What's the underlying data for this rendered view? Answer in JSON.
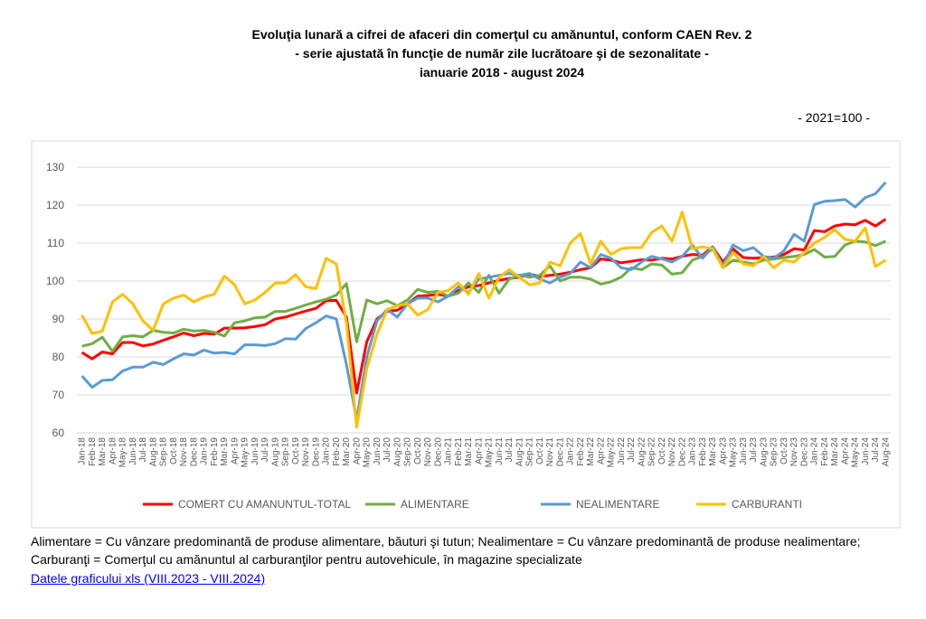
{
  "chart_data": {
    "type": "line",
    "title": [
      "Evoluţia lunară a cifrei de afaceri din comerţul cu amănuntul, conform CAEN Rev. 2",
      "- serie ajustată în funcţie de număr zile lucrătoare şi de sezonalitate -",
      "ianuarie 2018 - august 2024"
    ],
    "subtitle": "- 2021=100 -",
    "categories": [
      "Jan-18",
      "Feb-18",
      "Mar-18",
      "Apr-18",
      "May-18",
      "Jun-18",
      "Jul-18",
      "Aug-18",
      "Sep-18",
      "Oct-18",
      "Nov-18",
      "Dec-18",
      "Jan-19",
      "Feb-19",
      "Mar-19",
      "Apr-19",
      "May-19",
      "Jun-19",
      "Jul-19",
      "Aug-19",
      "Sep-19",
      "Oct-19",
      "Nov-19",
      "Dec-19",
      "Jan-20",
      "Feb-20",
      "Mar-20",
      "Apr-20",
      "May-20",
      "Jun-20",
      "Jul-20",
      "Aug-20",
      "Sep-20",
      "Oct-20",
      "Nov-20",
      "Dec-20",
      "Jan-21",
      "Feb-21",
      "Mar-21",
      "Apr-21",
      "May-21",
      "Jun-21",
      "Jul-21",
      "Aug-21",
      "Sep-21",
      "Oct-21",
      "Nov-21",
      "Dec-21",
      "Jan-22",
      "Feb-22",
      "Mar-22",
      "Apr-22",
      "May-22",
      "Jun-22",
      "Jul-22",
      "Aug-22",
      "Sep-22",
      "Oct-22",
      "Nov-22",
      "Dec-22",
      "Jan-23",
      "Feb-23",
      "Mar-23",
      "Apr-23",
      "May-23",
      "Jun-23",
      "Jul-23",
      "Aug-23",
      "Sep-23",
      "Oct-23",
      "Nov-23",
      "Dec-23",
      "Jan-24",
      "Feb-24",
      "Mar-24",
      "Apr-24",
      "May-24",
      "Jun-24",
      "Jul-24",
      "Aug-24"
    ],
    "series": [
      {
        "name": "COMERT CU AMANUNTUL-TOTAL",
        "color": "#ff0000",
        "values": [
          81.2,
          79.5,
          81.3,
          80.8,
          83.8,
          83.8,
          82.9,
          83.4,
          84.4,
          85.3,
          86.3,
          85.6,
          86.2,
          86.0,
          87.6,
          87.6,
          87.7,
          88.0,
          88.5,
          90.0,
          90.5,
          91.3,
          92.1,
          92.8,
          94.8,
          94.9,
          90.5,
          70.5,
          84.0,
          90.0,
          92.0,
          92.3,
          94.0,
          96.0,
          96.2,
          96.5,
          96.0,
          97.5,
          98.5,
          98.8,
          99.5,
          100.2,
          100.7,
          101.0,
          101.8,
          101.2,
          101.5,
          101.8,
          102.3,
          103.0,
          103.5,
          105.8,
          105.5,
          104.8,
          105.2,
          105.6,
          105.5,
          106.0,
          105.8,
          106.5,
          107.0,
          106.8,
          109.0,
          105.0,
          108.5,
          106.2,
          106.0,
          106.2,
          106.3,
          107.0,
          108.5,
          108.2,
          113.3,
          113.0,
          114.5,
          115.0,
          114.8,
          116.0,
          114.5,
          116.3
        ]
      },
      {
        "name": "ALIMENTARE",
        "color": "#70ad47",
        "values": [
          82.8,
          83.5,
          85.2,
          81.5,
          85.3,
          85.6,
          85.3,
          87.0,
          86.5,
          86.3,
          87.3,
          86.8,
          87.0,
          86.5,
          85.5,
          89.0,
          89.5,
          90.3,
          90.5,
          92.0,
          92.0,
          92.8,
          93.7,
          94.5,
          95.2,
          96.3,
          99.3,
          84.0,
          95.0,
          94.0,
          94.8,
          93.5,
          95.0,
          97.8,
          97.0,
          97.3,
          96.0,
          96.8,
          99.5,
          97.0,
          101.5,
          96.8,
          100.5,
          101.5,
          101.0,
          101.5,
          104.0,
          100.0,
          101.0,
          101.0,
          100.5,
          99.2,
          99.8,
          101.0,
          103.5,
          103.0,
          104.5,
          104.2,
          101.8,
          102.2,
          105.5,
          106.5,
          108.5,
          103.5,
          105.5,
          105.0,
          104.5,
          105.5,
          105.8,
          106.2,
          106.5,
          107.0,
          108.3,
          106.3,
          106.5,
          109.5,
          110.5,
          110.3,
          109.3,
          110.5
        ]
      },
      {
        "name": "NEALIMENTARE",
        "color": "#5b9bd5",
        "values": [
          75.0,
          72.0,
          73.8,
          74.0,
          76.3,
          77.3,
          77.3,
          78.6,
          78.0,
          79.5,
          80.8,
          80.5,
          81.8,
          81.0,
          81.2,
          80.8,
          83.2,
          83.2,
          83.0,
          83.5,
          84.8,
          84.7,
          87.5,
          89.0,
          90.8,
          90.0,
          78.0,
          63.5,
          80.0,
          89.5,
          92.5,
          90.5,
          94.0,
          95.5,
          95.5,
          94.5,
          96.0,
          98.5,
          97.0,
          100.5,
          101.0,
          101.5,
          102.0,
          101.5,
          102.0,
          100.5,
          99.5,
          101.0,
          102.0,
          105.0,
          103.5,
          107.0,
          106.0,
          103.5,
          103.0,
          105.0,
          106.5,
          105.8,
          105.0,
          106.5,
          109.5,
          106.0,
          109.0,
          104.0,
          109.5,
          108.0,
          108.8,
          106.5,
          106.0,
          108.0,
          112.3,
          110.5,
          120.2,
          121.0,
          121.2,
          121.5,
          119.5,
          122.0,
          123.0,
          126.0
        ]
      },
      {
        "name": "CARBURANTI",
        "color": "#ffc000",
        "values": [
          91.0,
          86.2,
          86.8,
          94.5,
          96.5,
          94.0,
          89.5,
          87.0,
          94.0,
          95.5,
          96.3,
          94.5,
          95.8,
          96.5,
          101.3,
          99.0,
          94.0,
          95.0,
          97.0,
          99.5,
          99.5,
          101.7,
          98.5,
          98.0,
          106.0,
          104.5,
          89.0,
          61.5,
          77.0,
          86.0,
          92.5,
          93.5,
          94.0,
          91.0,
          92.5,
          97.0,
          97.5,
          99.5,
          96.5,
          102.0,
          95.5,
          101.0,
          103.0,
          101.0,
          99.0,
          99.5,
          105.0,
          104.0,
          110.0,
          112.5,
          104.5,
          110.5,
          107.0,
          108.5,
          108.8,
          108.8,
          112.8,
          114.5,
          110.5,
          118.2,
          108.5,
          109.0,
          108.5,
          103.5,
          107.5,
          104.5,
          104.0,
          106.5,
          103.5,
          105.5,
          105.0,
          107.5,
          110.0,
          111.5,
          113.5,
          111.0,
          110.5,
          114.0,
          103.8,
          105.5
        ]
      }
    ],
    "ylim": [
      60,
      130
    ],
    "yticks": [
      60,
      70,
      80,
      90,
      100,
      110,
      120,
      130
    ],
    "grid": true,
    "note": "Alimentare = Cu vânzare predominantă de produse alimentare, băuturi şi tutun; Nealimentare = Cu vânzare predominantă de produse nealimentare; Carburanţi = Comerţul cu amănuntul al carburanţilor pentru autovehicule, în magazine specializate",
    "link": "Datele graficului xls (VIII.2023 - VIII.2024)"
  }
}
